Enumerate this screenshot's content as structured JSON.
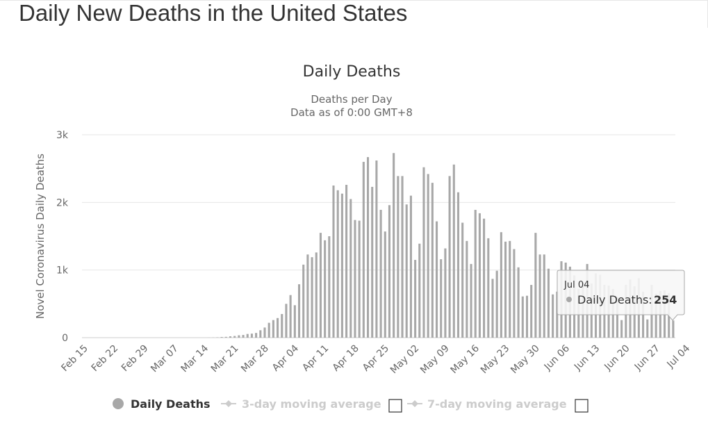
{
  "page": {
    "title": "Daily New Deaths in the United States"
  },
  "colors": {
    "bar": "#a8a8a8",
    "grid": "#e6e6e6",
    "axis_text": "#666666",
    "title_text": "#333333",
    "legend_inactive": "#cccccc",
    "tooltip_border": "#a8a8a8"
  },
  "chart_data": {
    "type": "bar",
    "title": "Daily Deaths",
    "subtitle_lines": [
      "Deaths per Day",
      "Data as of 0:00 GMT+8"
    ],
    "ylabel": "Novel Coronavirus Daily Deaths",
    "xlabel": "",
    "ylim": [
      0,
      3000
    ],
    "yticks": [
      "0",
      "1k",
      "2k",
      "3k"
    ],
    "ytick_values": [
      0,
      1000,
      2000,
      3000
    ],
    "grid": true,
    "x_start": "Feb 15",
    "x_end": "Jul 04",
    "xtick_labels": [
      "Feb 15",
      "Feb 22",
      "Feb 29",
      "Mar 07",
      "Mar 14",
      "Mar 21",
      "Mar 28",
      "Apr 04",
      "Apr 11",
      "Apr 18",
      "Apr 25",
      "May 02",
      "May 09",
      "May 16",
      "May 23",
      "May 30",
      "Jun 06",
      "Jun 13",
      "Jun 20",
      "Jun 27",
      "Jul 04"
    ],
    "series": [
      {
        "name": "Daily Deaths",
        "values": [
          0,
          0,
          0,
          0,
          0,
          0,
          0,
          0,
          0,
          0,
          0,
          0,
          0,
          0,
          0,
          0,
          0,
          0,
          0,
          0,
          0,
          0,
          0,
          0,
          0,
          0,
          0,
          0,
          0,
          1,
          2,
          5,
          10,
          12,
          20,
          25,
          35,
          40,
          55,
          60,
          70,
          110,
          150,
          220,
          260,
          290,
          350,
          500,
          630,
          480,
          790,
          1080,
          1230,
          1190,
          1260,
          1550,
          1440,
          1500,
          2250,
          2180,
          2130,
          2260,
          2050,
          1740,
          1730,
          2600,
          2670,
          2230,
          2620,
          1890,
          1570,
          1960,
          2730,
          2390,
          2390,
          1970,
          2100,
          1150,
          1390,
          2520,
          2420,
          2290,
          1720,
          1160,
          1320,
          2390,
          2560,
          2150,
          1700,
          1430,
          1090,
          1890,
          1840,
          1760,
          1470,
          870,
          990,
          1560,
          1420,
          1430,
          1310,
          1040,
          610,
          620,
          780,
          1550,
          1230,
          1230,
          1020,
          640,
          680,
          1130,
          1110,
          1050,
          920,
          720,
          820,
          1090,
          800,
          950,
          930,
          780,
          770,
          720,
          600,
          260,
          780,
          860,
          760,
          880,
          680,
          270,
          780,
          650,
          690,
          700,
          660,
          254
        ]
      },
      {
        "name": "3-day moving average",
        "visible": false
      },
      {
        "name": "7-day moving average",
        "visible": false
      }
    ],
    "legend": {
      "placement": "bottom",
      "items": [
        "Daily Deaths",
        "3-day moving average",
        "7-day moving average"
      ]
    },
    "tooltip": {
      "date": "Jul 04",
      "series_label": "Daily Deaths:",
      "value": "254"
    }
  }
}
